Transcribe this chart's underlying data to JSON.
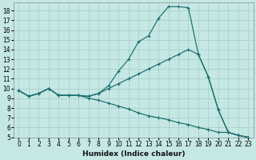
{
  "xlabel": "Humidex (Indice chaleur)",
  "background_color": "#c5e8e5",
  "grid_color": "#a5ccc8",
  "line_color": "#1a6b6b",
  "xlim_min": -0.5,
  "xlim_max": 23.5,
  "ylim_min": 5,
  "ylim_max": 18.8,
  "xticks": [
    0,
    1,
    2,
    3,
    4,
    5,
    6,
    7,
    8,
    9,
    10,
    11,
    12,
    13,
    14,
    15,
    16,
    17,
    18,
    19,
    20,
    21,
    22,
    23
  ],
  "yticks": [
    5,
    6,
    7,
    8,
    9,
    10,
    11,
    12,
    13,
    14,
    15,
    16,
    17,
    18
  ],
  "series1_x": [
    0,
    1,
    2,
    3,
    4,
    5,
    6,
    7,
    8,
    9,
    10,
    11,
    12,
    13,
    14,
    15,
    16,
    17,
    18,
    19,
    20,
    21,
    22,
    23
  ],
  "series1_y": [
    9.8,
    9.2,
    9.5,
    10.0,
    9.3,
    9.3,
    9.3,
    9.2,
    9.5,
    10.3,
    11.8,
    13.0,
    14.8,
    15.4,
    17.2,
    18.4,
    18.4,
    18.3,
    13.5,
    11.2,
    7.8,
    5.5,
    5.2,
    5.0
  ],
  "series2_x": [
    0,
    1,
    2,
    3,
    4,
    5,
    6,
    7,
    8,
    9,
    10,
    11,
    12,
    13,
    14,
    15,
    16,
    17,
    18,
    19,
    20,
    21,
    22,
    23
  ],
  "series2_y": [
    9.8,
    9.2,
    9.5,
    10.0,
    9.3,
    9.3,
    9.3,
    9.2,
    9.5,
    10.0,
    10.5,
    11.0,
    11.5,
    12.0,
    12.5,
    13.0,
    13.5,
    14.0,
    13.5,
    11.2,
    7.8,
    5.5,
    5.2,
    5.0
  ],
  "series3_x": [
    0,
    1,
    2,
    3,
    4,
    5,
    6,
    7,
    8,
    9,
    10,
    11,
    12,
    13,
    14,
    15,
    16,
    17,
    18,
    19,
    20,
    21,
    22,
    23
  ],
  "series3_y": [
    9.8,
    9.2,
    9.5,
    10.0,
    9.3,
    9.3,
    9.3,
    9.0,
    8.8,
    8.5,
    8.2,
    7.9,
    7.5,
    7.2,
    7.0,
    6.8,
    6.5,
    6.3,
    6.0,
    5.8,
    5.5,
    5.5,
    5.2,
    5.0
  ],
  "tick_fontsize": 5.5,
  "xlabel_fontsize": 6.5
}
